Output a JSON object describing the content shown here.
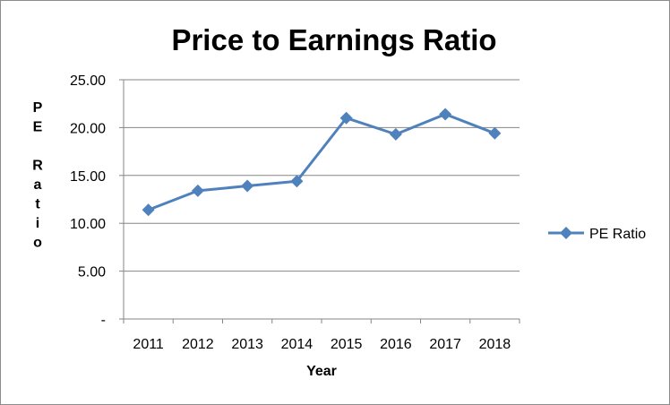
{
  "chart_data": {
    "type": "line",
    "title": "Price to Earnings Ratio",
    "xlabel": "Year",
    "ylabel": "PE Ratio",
    "categories": [
      "2011",
      "2012",
      "2013",
      "2014",
      "2015",
      "2016",
      "2017",
      "2018"
    ],
    "series": [
      {
        "name": "PE Ratio",
        "values": [
          11.4,
          13.4,
          13.9,
          14.4,
          21.0,
          19.3,
          21.4,
          19.4
        ],
        "color": "#4f81bd",
        "marker": "diamond"
      }
    ],
    "ylim": [
      0,
      25
    ],
    "yticks": [
      "-",
      "5.00",
      "10.00",
      "15.00",
      "20.00",
      "25.00"
    ],
    "grid": true,
    "legend_position": "right"
  }
}
